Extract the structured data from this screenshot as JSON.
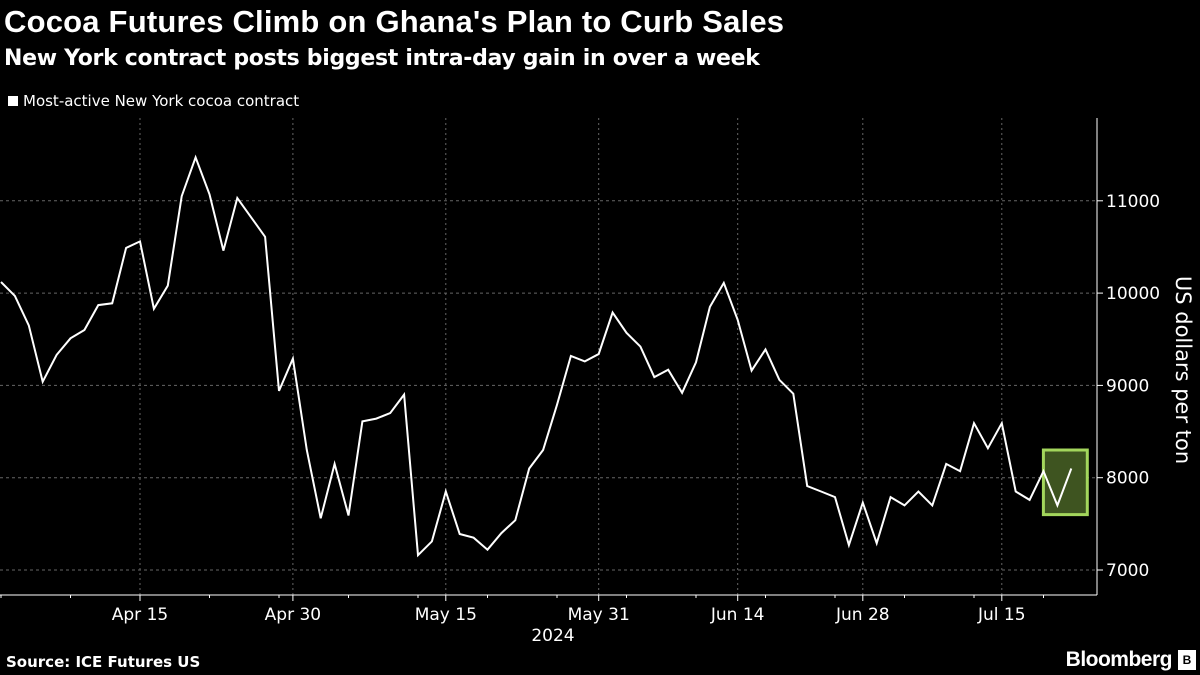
{
  "title": "Cocoa Futures Climb on Ghana's Plan to Curb Sales",
  "subtitle": "New York contract posts biggest intra-day gain in over a week",
  "source": "Source: ICE Futures US",
  "brand": "Bloomberg",
  "colors": {
    "background": "#000000",
    "line": "#ffffff",
    "highlight_border": "#a3d65c",
    "highlight_fill": "#3e5420",
    "grid": "#666666"
  },
  "chart_data": {
    "type": "line",
    "title": "Cocoa Futures Climb on Ghana's Plan to Curb Sales",
    "subtitle": "New York contract posts biggest intra-day gain in over a week",
    "ylabel": "US dollars per ton",
    "xlabel": "2024",
    "ylim": [
      6800,
      11900
    ],
    "yticks": [
      7000,
      8000,
      9000,
      10000,
      11000
    ],
    "xticks": [
      {
        "date": "2024-04-15",
        "label": "Apr 15"
      },
      {
        "date": "2024-04-30",
        "label": "Apr 30"
      },
      {
        "date": "2024-05-15",
        "label": "May 15"
      },
      {
        "date": "2024-05-31",
        "label": "May 31"
      },
      {
        "date": "2024-06-14",
        "label": "Jun 14"
      },
      {
        "date": "2024-06-28",
        "label": "Jun 28"
      },
      {
        "date": "2024-07-15",
        "label": "Jul 15"
      }
    ],
    "year_label": "2024",
    "grid": true,
    "legend_position": "top-left",
    "highlight": {
      "from": "2024-07-19",
      "to": "2024-07-22"
    },
    "series": [
      {
        "name": "Most-active New York cocoa contract",
        "x": [
          "2024-04-01",
          "2024-04-02",
          "2024-04-03",
          "2024-04-04",
          "2024-04-05",
          "2024-04-08",
          "2024-04-09",
          "2024-04-10",
          "2024-04-11",
          "2024-04-12",
          "2024-04-15",
          "2024-04-16",
          "2024-04-17",
          "2024-04-18",
          "2024-04-19",
          "2024-04-22",
          "2024-04-23",
          "2024-04-24",
          "2024-04-25",
          "2024-04-26",
          "2024-04-29",
          "2024-04-30",
          "2024-05-01",
          "2024-05-02",
          "2024-05-03",
          "2024-05-06",
          "2024-05-07",
          "2024-05-08",
          "2024-05-09",
          "2024-05-10",
          "2024-05-13",
          "2024-05-14",
          "2024-05-15",
          "2024-05-16",
          "2024-05-17",
          "2024-05-20",
          "2024-05-21",
          "2024-05-22",
          "2024-05-23",
          "2024-05-24",
          "2024-05-28",
          "2024-05-29",
          "2024-05-30",
          "2024-05-31",
          "2024-06-03",
          "2024-06-04",
          "2024-06-05",
          "2024-06-06",
          "2024-06-07",
          "2024-06-10",
          "2024-06-11",
          "2024-06-12",
          "2024-06-13",
          "2024-06-14",
          "2024-06-17",
          "2024-06-18",
          "2024-06-20",
          "2024-06-21",
          "2024-06-24",
          "2024-06-25",
          "2024-06-26",
          "2024-06-27",
          "2024-06-28",
          "2024-07-01",
          "2024-07-02",
          "2024-07-03",
          "2024-07-05",
          "2024-07-08",
          "2024-07-09",
          "2024-07-10",
          "2024-07-11",
          "2024-07-12",
          "2024-07-15",
          "2024-07-16",
          "2024-07-17",
          "2024-07-18",
          "2024-07-19",
          "2024-07-22"
        ],
        "values": [
          10120,
          9970,
          9650,
          9040,
          9330,
          9510,
          9600,
          9870,
          9890,
          10490,
          10560,
          9830,
          10080,
          11050,
          11470,
          11070,
          10460,
          11030,
          10820,
          10610,
          8940,
          9290,
          8300,
          7560,
          8150,
          7590,
          8610,
          8640,
          8700,
          8900,
          7160,
          7310,
          7850,
          7390,
          7350,
          7220,
          7400,
          7540,
          8100,
          8300,
          8790,
          9320,
          9260,
          9340,
          9790,
          9570,
          9420,
          9090,
          9170,
          8920,
          9250,
          9850,
          10110,
          9710,
          9160,
          9390,
          9060,
          8910,
          7910,
          7850,
          7790,
          7270,
          7730,
          7290,
          7790,
          7700,
          7850,
          7700,
          8150,
          8070,
          8590,
          8320,
          8590,
          7850,
          7760,
          8070,
          7700,
          8100
        ]
      }
    ]
  }
}
